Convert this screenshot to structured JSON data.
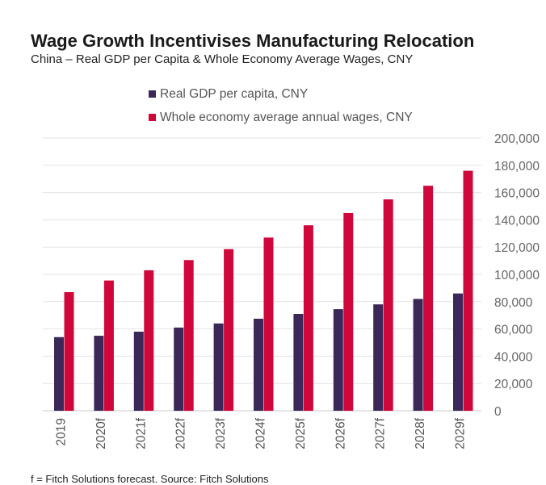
{
  "header": {
    "title": "Wage Growth Incentivises Manufacturing Relocation",
    "subtitle": "China – Real GDP per Capita & Whole Economy Average Wages, CNY"
  },
  "footnote": "f = Fitch Solutions forecast. Source: Fitch Solutions",
  "chart_data": {
    "type": "bar",
    "categories": [
      "2019",
      "2020f",
      "2021f",
      "2022f",
      "2023f",
      "2024f",
      "2025f",
      "2026f",
      "2027f",
      "2028f",
      "2029f"
    ],
    "series": [
      {
        "name": "Real GDP per capita, CNY",
        "color": "#3b2858",
        "values": [
          54000,
          55000,
          58000,
          61000,
          64000,
          67500,
          71000,
          74500,
          78000,
          82000,
          86000
        ]
      },
      {
        "name": "Whole economy average annual wages, CNY",
        "color": "#d0073a",
        "values": [
          87000,
          95500,
          103000,
          110500,
          118500,
          127000,
          136000,
          145000,
          155000,
          165000,
          176000
        ]
      }
    ],
    "ylim": [
      0,
      200000
    ],
    "yticks": [
      "0",
      "20,000",
      "40,000",
      "60,000",
      "80,000",
      "100,000",
      "120,000",
      "140,000",
      "160,000",
      "180,000",
      "200,000"
    ],
    "grid": true,
    "legend": "top"
  }
}
